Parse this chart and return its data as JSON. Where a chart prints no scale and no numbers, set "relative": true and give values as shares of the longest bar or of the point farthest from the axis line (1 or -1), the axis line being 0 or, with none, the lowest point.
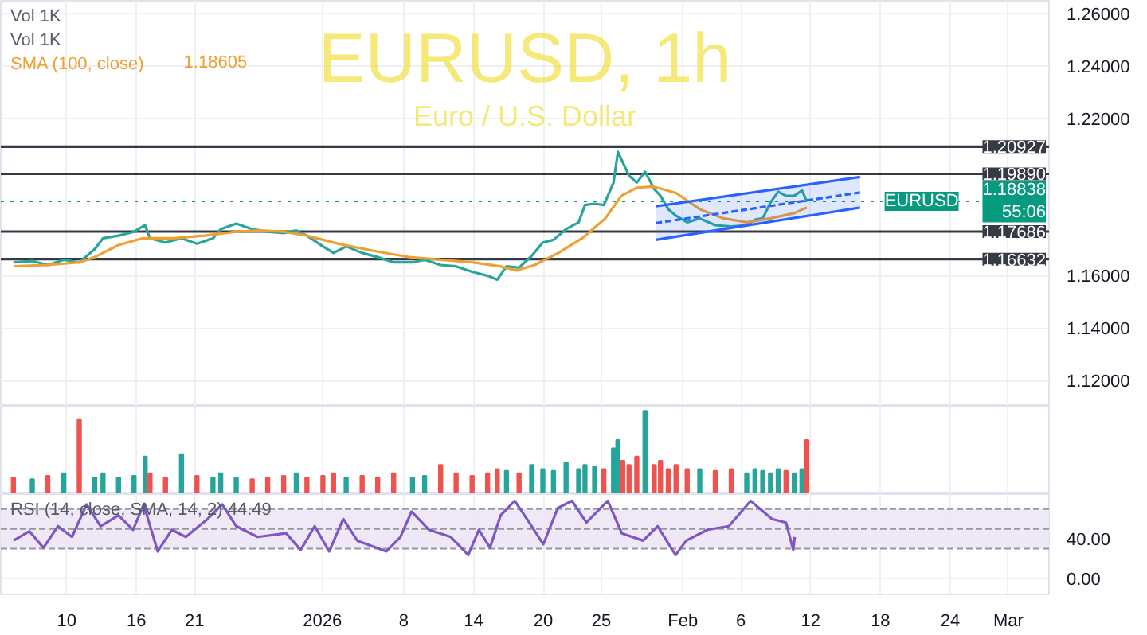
{
  "chart_data": [
    {
      "type": "line",
      "title": "EURUSD, 1h",
      "subtitle": "Euro / U.S. Dollar",
      "annotations": [
        "Vol 1K",
        "Vol 1K",
        "1.18605",
        {
          "text": "EURUSD",
          "x": "2026-02-25T00:00",
          "y": 1.18838
        }
      ],
      "xlim": [
        "2025-12-04T08:00",
        "2026-03-04T12:00"
      ],
      "xticks": [
        {
          "value": "2025-12-10",
          "label": null
        },
        {
          "value": "2025-12-16",
          "label": null
        },
        {
          "value": "2025-12-21",
          "label": null
        },
        {
          "value": "2026-01-01",
          "label": null
        },
        {
          "value": "2026-01-08",
          "label": null
        },
        {
          "value": "2026-01-14",
          "label": null
        },
        {
          "value": "2026-01-20",
          "label": null
        },
        {
          "value": "2026-01-25",
          "label": null
        },
        {
          "value": "2026-02-01",
          "label": null
        },
        {
          "value": "2026-02-06",
          "label": null
        },
        {
          "value": "2026-02-12",
          "label": null
        },
        {
          "value": "2026-02-18",
          "label": null
        },
        {
          "value": "2026-02-24",
          "label": null
        },
        {
          "value": "2026-03-01",
          "label": null
        }
      ],
      "ylim": [
        1.11,
        1.265
      ],
      "yticks": [
        {
          "value": 1.12,
          "label": "1.12000"
        },
        {
          "value": 1.14,
          "label": "1.14000"
        },
        {
          "value": 1.16,
          "label": "1.16000"
        },
        {
          "value": 1.22,
          "label": "1.22000"
        },
        {
          "value": 1.24,
          "label": "1.24000"
        },
        {
          "value": 1.26,
          "label": "1.26000"
        }
      ],
      "grid": true,
      "marker": "none",
      "tick_labels": "y",
      "ref_lines": [
        {
          "axis": "y",
          "value": 1.20927,
          "label": "1.20927",
          "color": "#363a45"
        },
        {
          "axis": "y",
          "value": 1.1989,
          "label": "1.19890",
          "color": "#363a45"
        },
        {
          "axis": "y",
          "value": 1.18838,
          "label": "1.18838\n55:06",
          "color": "#089981",
          "line_style": "dotted"
        },
        {
          "axis": "y",
          "value": 1.17686,
          "label": "1.17686",
          "color": "#363a45"
        },
        {
          "axis": "y",
          "value": 1.16632,
          "label": "1.16632",
          "color": "#363a45"
        }
      ],
      "series": [
        {
          "color": "#26a69a",
          "line_style": "solid",
          "x": [
            "2025-12-05T10:00",
            "2025-12-07T01:00",
            "2025-12-08T09:00",
            "2025-12-09T18:00",
            "2025-12-11T02:00",
            "2025-12-12T10:00",
            "2025-12-13T03:00",
            "2025-12-14T11:00",
            "2025-12-15T19:00",
            "2025-12-16T18:00",
            "2025-12-17T04:00",
            "2025-12-18T12:00",
            "2025-12-19T21:00",
            "2025-12-21T05:00",
            "2025-12-22T14:00",
            "2025-12-23T06:00",
            "2025-12-24T14:00",
            "2025-12-25T23:00",
            "2025-12-27T07:00",
            "2025-12-28T16:00",
            "2025-12-29T18:00",
            "2025-12-30T16:00",
            "2026-01-01T01:00",
            "2026-01-01T23:00",
            "2026-01-03T01:00",
            "2026-01-04T10:00",
            "2026-01-05T18:00",
            "2026-01-07T03:00",
            "2026-01-08T18:00",
            "2026-01-09T19:00",
            "2026-01-11T04:00",
            "2026-01-12T12:00",
            "2026-01-13T21:00",
            "2026-01-15T05:00",
            "2026-01-16T01:00",
            "2026-01-16T20:00",
            "2026-01-17T22:00",
            "2026-01-19T00:00",
            "2026-01-19T23:00",
            "2026-01-20T21:00",
            "2026-01-21T23:00",
            "2026-01-23T01:00",
            "2026-01-23T14:00",
            "2026-01-24T10:00",
            "2026-01-25T05:00",
            "2026-01-26T01:00",
            "2026-01-26T10:00",
            "2026-01-26T20:00",
            "2026-01-27T09:00",
            "2026-01-28T01:00",
            "2026-01-28T18:00",
            "2026-01-29T13:00",
            "2026-01-30T02:00",
            "2026-01-30T18:00",
            "2026-01-31T10:00",
            "2026-02-01T09:00",
            "2026-02-02T11:00",
            "2026-02-03T19:00",
            "2026-02-05T04:00",
            "2026-02-06T12:00",
            "2026-02-07T05:00",
            "2026-02-07T21:00",
            "2026-02-08T13:00",
            "2026-02-09T05:00",
            "2026-02-09T21:00",
            "2026-02-10T14:00",
            "2026-02-11T06:00",
            "2026-02-11T16:00"
          ],
          "values": [
            1.1651,
            1.1656,
            1.1641,
            1.1661,
            1.1651,
            1.1702,
            1.1743,
            1.1753,
            1.1768,
            1.1793,
            1.1743,
            1.1727,
            1.1743,
            1.1722,
            1.1743,
            1.1778,
            1.1799,
            1.1778,
            1.1768,
            1.1763,
            1.1773,
            1.1753,
            1.1712,
            1.1687,
            1.1712,
            1.1687,
            1.1671,
            1.1651,
            1.1651,
            1.1661,
            1.1641,
            1.1636,
            1.1615,
            1.16,
            1.1585,
            1.1636,
            1.1631,
            1.1676,
            1.1727,
            1.1737,
            1.1778,
            1.1804,
            1.187,
            1.1875,
            1.187,
            1.1956,
            1.2073,
            1.2033,
            1.1982,
            1.1956,
            1.1997,
            1.1931,
            1.1905,
            1.1854,
            1.1829,
            1.1804,
            1.1819,
            1.1793,
            1.1788,
            1.1793,
            1.1814,
            1.1819,
            1.188,
            1.1921,
            1.1905,
            1.1905,
            1.1926,
            1.1884
          ]
        },
        {
          "name": "SMA (100, close)",
          "color": "#f0a030",
          "line_style": "solid",
          "x": [
            "2025-12-05T10:00",
            "2025-12-08T09:00",
            "2025-12-11T02:00",
            "2025-12-12T10:00",
            "2025-12-14T11:00",
            "2025-12-16T12:00",
            "2025-12-19T05:00",
            "2025-12-21T21:00",
            "2025-12-24T14:00",
            "2025-12-26T15:00",
            "2025-12-28T16:00",
            "2025-12-30T16:00",
            "2026-01-02T09:00",
            "2026-01-05T18:00",
            "2026-01-08T11:00",
            "2026-01-11T04:00",
            "2026-01-13T21:00",
            "2026-01-16T07:00",
            "2026-01-17T16:00",
            "2026-01-19T06:00",
            "2026-01-21T07:00",
            "2026-01-23T08:00",
            "2026-01-25T08:00",
            "2026-01-26T17:00",
            "2026-01-28T01:00",
            "2026-01-29T10:00",
            "2026-01-31T10:00",
            "2026-02-02T11:00",
            "2026-02-04T12:00",
            "2026-02-06T12:00",
            "2026-02-08T13:00",
            "2026-02-10T14:00",
            "2026-02-11T16:00"
          ],
          "values": [
            1.1636,
            1.1641,
            1.1651,
            1.1671,
            1.1717,
            1.1743,
            1.1743,
            1.1753,
            1.1768,
            1.1773,
            1.1768,
            1.1753,
            1.1722,
            1.1692,
            1.1671,
            1.1661,
            1.1651,
            1.1636,
            1.162,
            1.1641,
            1.1687,
            1.1743,
            1.1819,
            1.1905,
            1.1936,
            1.1941,
            1.1916,
            1.1854,
            1.1819,
            1.1804,
            1.1819,
            1.1839,
            1.18605
          ]
        },
        {
          "color": "#2962ff",
          "line_style": "dashed",
          "x": [
            "2026-01-29T16:00",
            "2026-02-16T06:00"
          ],
          "values": [
            1.1801,
            1.1918
          ],
          "lower": [
            1.1737,
            1.186
          ],
          "upper": [
            1.1865,
            1.1977
          ]
        },
        {
          "color": "#2962ff",
          "line_style": "solid",
          "x": [
            "2026-01-29T16:00",
            "2026-02-16T06:00"
          ],
          "values": [
            1.1737,
            1.186
          ]
        },
        {
          "color": "#2962ff",
          "line_style": "solid",
          "x": [
            "2026-01-29T16:00",
            "2026-02-16T06:00"
          ],
          "values": [
            1.1865,
            1.1977
          ]
        }
      ]
    },
    {
      "type": "bar",
      "relative": true,
      "tick_labels": false,
      "grid": true,
      "xlim": [
        "2025-12-04T08:00",
        "2026-03-04T12:00"
      ],
      "xticks": [
        {
          "value": "2025-12-10",
          "label": null
        },
        {
          "value": "2025-12-16",
          "label": null
        },
        {
          "value": "2025-12-21",
          "label": null
        },
        {
          "value": "2026-01-01",
          "label": null
        },
        {
          "value": "2026-01-08",
          "label": null
        },
        {
          "value": "2026-01-14",
          "label": null
        },
        {
          "value": "2026-01-20",
          "label": null
        },
        {
          "value": "2026-01-25",
          "label": null
        },
        {
          "value": "2026-02-01",
          "label": null
        },
        {
          "value": "2026-02-06",
          "label": null
        },
        {
          "value": "2026-02-12",
          "label": null
        },
        {
          "value": "2026-02-18",
          "label": null
        },
        {
          "value": "2026-02-24",
          "label": null
        },
        {
          "value": "2026-03-01",
          "label": null
        }
      ],
      "x": [
        "2025-12-05T10:00",
        "2025-12-07T01:00",
        "2025-12-08T09:00",
        "2025-12-09T18:00",
        "2025-12-11T02:00",
        "2025-12-12T10:00",
        "2025-12-13T03:00",
        "2025-12-14T11:00",
        "2025-12-15T19:00",
        "2025-12-16T18:00",
        "2025-12-17T04:00",
        "2025-12-18T12:00",
        "2025-12-19T21:00",
        "2025-12-21T05:00",
        "2025-12-22T14:00",
        "2025-12-23T06:00",
        "2025-12-24T14:00",
        "2025-12-25T23:00",
        "2025-12-27T07:00",
        "2025-12-28T16:00",
        "2025-12-29T18:00",
        "2025-12-30T16:00",
        "2026-01-01T01:00",
        "2026-01-01T23:00",
        "2026-01-03T01:00",
        "2026-01-04T10:00",
        "2026-01-05T18:00",
        "2026-01-07T03:00",
        "2026-01-08T18:00",
        "2026-01-09T19:00",
        "2026-01-11T04:00",
        "2026-01-12T12:00",
        "2026-01-13T21:00",
        "2026-01-15T05:00",
        "2026-01-16T01:00",
        "2026-01-16T20:00",
        "2026-01-17T22:00",
        "2026-01-19T00:00",
        "2026-01-19T23:00",
        "2026-01-20T21:00",
        "2026-01-21T23:00",
        "2026-01-23T01:00",
        "2026-01-23T14:00",
        "2026-01-24T10:00",
        "2026-01-25T05:00",
        "2026-01-26T01:00",
        "2026-01-26T10:00",
        "2026-01-26T20:00",
        "2026-01-27T09:00",
        "2026-01-28T01:00",
        "2026-01-28T18:00",
        "2026-01-29T13:00",
        "2026-01-30T02:00",
        "2026-01-30T18:00",
        "2026-01-31T10:00",
        "2026-02-01T09:00",
        "2026-02-02T11:00",
        "2026-02-03T19:00",
        "2026-02-05T04:00",
        "2026-02-06T12:00",
        "2026-02-07T05:00",
        "2026-02-07T21:00",
        "2026-02-08T13:00",
        "2026-02-09T05:00",
        "2026-02-09T21:00",
        "2026-02-10T14:00",
        "2026-02-11T06:00",
        "2026-02-11T16:00"
      ],
      "values": [
        0.2,
        0.18,
        0.22,
        0.25,
        0.9,
        0.2,
        0.25,
        0.2,
        0.22,
        0.45,
        0.25,
        0.2,
        0.48,
        0.22,
        0.2,
        0.25,
        0.2,
        0.18,
        0.2,
        0.22,
        0.25,
        0.2,
        0.22,
        0.25,
        0.2,
        0.22,
        0.2,
        0.25,
        0.2,
        0.22,
        0.35,
        0.25,
        0.22,
        0.25,
        0.3,
        0.28,
        0.25,
        0.35,
        0.3,
        0.28,
        0.38,
        0.3,
        0.35,
        0.33,
        0.3,
        0.55,
        0.65,
        0.4,
        0.35,
        0.45,
        1.0,
        0.35,
        0.4,
        0.3,
        0.35,
        0.3,
        0.3,
        0.28,
        0.3,
        0.25,
        0.3,
        0.28,
        0.25,
        0.3,
        0.28,
        0.25,
        0.3,
        0.65
      ],
      "colors": [
        "#ef5350",
        "#26a69a",
        "#ef5350",
        "#26a69a",
        "#ef5350",
        "#26a69a",
        "#26a69a",
        "#26a69a",
        "#26a69a",
        "#26a69a",
        "#ef5350",
        "#ef5350",
        "#26a69a",
        "#ef5350",
        "#26a69a",
        "#26a69a",
        "#26a69a",
        "#ef5350",
        "#ef5350",
        "#ef5350",
        "#26a69a",
        "#ef5350",
        "#ef5350",
        "#ef5350",
        "#26a69a",
        "#ef5350",
        "#ef5350",
        "#ef5350",
        "#26a69a",
        "#26a69a",
        "#ef5350",
        "#ef5350",
        "#ef5350",
        "#ef5350",
        "#ef5350",
        "#26a69a",
        "#ef5350",
        "#26a69a",
        "#26a69a",
        "#26a69a",
        "#26a69a",
        "#26a69a",
        "#26a69a",
        "#26a69a",
        "#ef5350",
        "#26a69a",
        "#26a69a",
        "#ef5350",
        "#ef5350",
        "#ef5350",
        "#26a69a",
        "#ef5350",
        "#ef5350",
        "#ef5350",
        "#ef5350",
        "#ef5350",
        "#26a69a",
        "#ef5350",
        "#ef5350",
        "#26a69a",
        "#26a69a",
        "#26a69a",
        "#26a69a",
        "#26a69a",
        "#ef5350",
        "#26a69a",
        "#26a69a",
        "#ef5350"
      ]
    },
    {
      "type": "line",
      "annotations": [
        "RSI (14, close, SMA, 14, 2)  44.49"
      ],
      "grid": true,
      "marker": "none",
      "xlim": [
        "2025-12-04T08:00",
        "2026-03-04T12:00"
      ],
      "xticks": [
        {
          "value": "2025-12-10",
          "label": "10"
        },
        {
          "value": "2025-12-16",
          "label": "16"
        },
        {
          "value": "2025-12-21",
          "label": "21"
        },
        {
          "value": "2026-01-01",
          "label": "2026"
        },
        {
          "value": "2026-01-08",
          "label": "8"
        },
        {
          "value": "2026-01-14",
          "label": "14"
        },
        {
          "value": "2026-01-20",
          "label": "20"
        },
        {
          "value": "2026-01-25",
          "label": "25"
        },
        {
          "value": "2026-02-01",
          "label": "Feb"
        },
        {
          "value": "2026-02-06",
          "label": "6"
        },
        {
          "value": "2026-02-12",
          "label": "12"
        },
        {
          "value": "2026-02-18",
          "label": "18"
        },
        {
          "value": "2026-02-24",
          "label": "24"
        },
        {
          "value": "2026-03-01",
          "label": "Mar"
        }
      ],
      "ylim": [
        -16,
        85
      ],
      "yticks": [
        {
          "value": 0,
          "label": "0.00"
        },
        {
          "value": 40,
          "label": "40.00"
        }
      ],
      "bands": [
        {
          "axis": "y",
          "from": 30,
          "to": 70,
          "color": "#ede7f6"
        }
      ],
      "ref_lines": [
        {
          "axis": "y",
          "value": 70,
          "color": "#9598a1",
          "line_style": "dashed"
        },
        {
          "axis": "y",
          "value": 50,
          "color": "#9598a1",
          "line_style": "dashed"
        },
        {
          "axis": "y",
          "value": 30,
          "color": "#9598a1",
          "line_style": "dashed"
        }
      ],
      "series": [
        {
          "color": "#7e57c2",
          "line_style": "solid",
          "x": [
            "2025-12-05T10:00",
            "2025-12-06T19:00",
            "2025-12-08T00:00",
            "2025-12-09T06:00",
            "2025-12-10T11:00",
            "2025-12-11T17:00",
            "2025-12-12T22:00",
            "2025-12-14T11:00",
            "2025-12-15T17:00",
            "2025-12-16T15:00",
            "2025-12-17T20:00",
            "2025-12-19T01:00",
            "2025-12-20T06:00",
            "2025-12-22T03:00",
            "2025-12-23T09:00",
            "2025-12-24T14:00",
            "2025-12-26T10:00",
            "2025-12-28T21:00",
            "2025-12-30T03:00",
            "2025-12-31T08:00",
            "2026-01-01T14:00",
            "2026-01-02T19:00",
            "2026-01-04T00:00",
            "2026-01-06T12:00",
            "2026-01-07T17:00",
            "2026-01-08T16:00",
            "2026-01-10T04:00",
            "2026-01-12T01:00",
            "2026-01-13T13:00",
            "2026-01-14T11:00",
            "2026-01-15T10:00",
            "2026-01-16T08:00",
            "2026-01-17T13:00",
            "2026-01-18T19:00",
            "2026-01-20T00:00",
            "2026-01-21T06:00",
            "2026-01-22T11:00",
            "2026-01-23T17:00",
            "2026-01-25T13:00",
            "2026-01-26T18:00",
            "2026-01-28T14:00",
            "2026-01-29T20:00",
            "2026-01-31T09:00",
            "2026-02-01T07:00",
            "2026-02-03T03:00",
            "2026-02-04T23:00",
            "2026-02-06T20:00",
            "2026-02-08T16:00",
            "2026-02-09T21:00",
            "2026-02-10T12:00",
            "2026-02-10T15:00"
          ],
          "values": [
            38.2,
            47.7,
            31,
            52.7,
            41.9,
            74.6,
            52.7,
            63.7,
            49.1,
            74.6,
            27.3,
            49.1,
            41.9,
            60,
            74.6,
            52.7,
            41.9,
            45.6,
            28.8,
            52.7,
            27.3,
            60,
            38.2,
            27.3,
            41.9,
            67.4,
            49.1,
            41.9,
            23.7,
            49.1,
            31,
            63.7,
            78.2,
            56.4,
            34.5,
            71,
            78.2,
            56.4,
            78.2,
            45.6,
            38.2,
            52.7,
            23.7,
            38.2,
            49.1,
            52.7,
            78.2,
            60,
            56.4,
            28.8,
            41.9
          ]
        }
      ]
    }
  ]
}
